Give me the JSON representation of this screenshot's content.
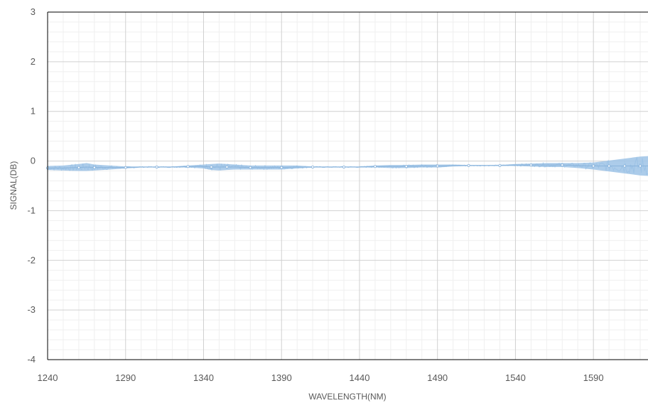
{
  "chart_data": {
    "type": "line",
    "title": "",
    "xlabel": "WAVELENGTH(NM)",
    "ylabel": "SIGNAL(DB)",
    "xlim": [
      1240,
      1625
    ],
    "ylim": [
      -4,
      3
    ],
    "x_ticks": [
      "1240",
      "1290",
      "1340",
      "1390",
      "1440",
      "1490",
      "1540",
      "1590"
    ],
    "y_ticks": [
      "3",
      "2",
      "1",
      "0",
      "-1",
      "-2",
      "-3",
      "-4"
    ],
    "grid": true,
    "legend": "none",
    "series_color": "#9dc3e6",
    "series": [
      {
        "x": [
          1240,
          1250,
          1260,
          1265,
          1270,
          1280,
          1290,
          1300,
          1310,
          1320,
          1330,
          1340,
          1345,
          1350,
          1355,
          1360,
          1370,
          1380,
          1390,
          1400,
          1410,
          1420,
          1430,
          1440,
          1450,
          1460,
          1470,
          1480,
          1490,
          1500,
          1510,
          1520,
          1530,
          1540,
          1550,
          1560,
          1570,
          1580,
          1590,
          1595,
          1600,
          1605,
          1610,
          1615,
          1620,
          1625
        ],
        "y": [
          -0.14,
          -0.14,
          -0.13,
          -0.12,
          -0.13,
          -0.13,
          -0.13,
          -0.12,
          -0.12,
          -0.12,
          -0.11,
          -0.11,
          -0.12,
          -0.12,
          -0.12,
          -0.12,
          -0.13,
          -0.13,
          -0.13,
          -0.12,
          -0.12,
          -0.12,
          -0.12,
          -0.12,
          -0.11,
          -0.11,
          -0.11,
          -0.1,
          -0.1,
          -0.09,
          -0.09,
          -0.09,
          -0.09,
          -0.08,
          -0.08,
          -0.08,
          -0.08,
          -0.09,
          -0.1,
          -0.1,
          -0.1,
          -0.1,
          -0.1,
          -0.1,
          -0.1,
          -0.1
        ],
        "noise": [
          0.04,
          0.05,
          0.07,
          0.08,
          0.06,
          0.04,
          0.02,
          0.01,
          0.01,
          0.01,
          0.02,
          0.04,
          0.06,
          0.07,
          0.06,
          0.05,
          0.04,
          0.04,
          0.04,
          0.03,
          0.01,
          0.01,
          0.01,
          0.01,
          0.02,
          0.03,
          0.03,
          0.03,
          0.03,
          0.02,
          0.01,
          0.01,
          0.01,
          0.02,
          0.03,
          0.04,
          0.04,
          0.05,
          0.07,
          0.09,
          0.11,
          0.13,
          0.15,
          0.17,
          0.19,
          0.2
        ]
      }
    ]
  }
}
